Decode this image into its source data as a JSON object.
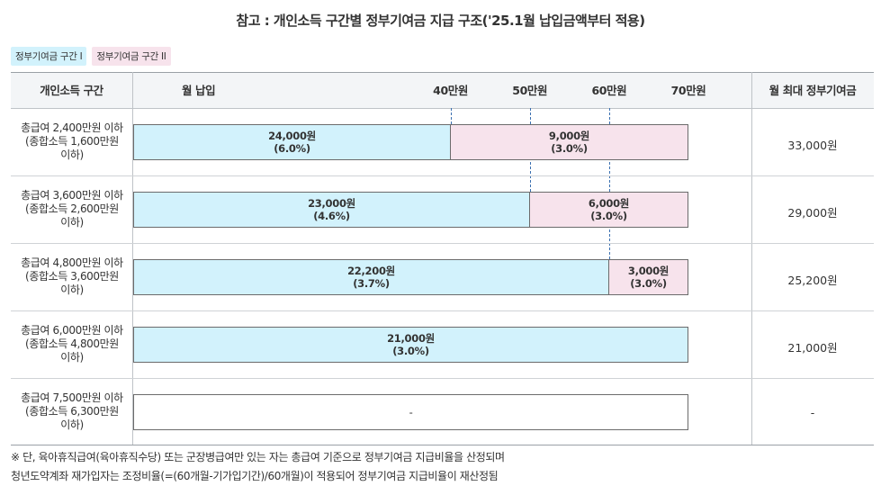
{
  "title": "참고 : 개인소득 구간별 정부기여금 지급 구조('25.1월 납입금액부터 적용)",
  "legend": {
    "tier1": "정부기여금 구간 I",
    "tier2": "정부기여금 구간 II"
  },
  "colors": {
    "tier1": "#d2f2fc",
    "tier2": "#f7e3ec",
    "dash": "#3a6fb0"
  },
  "header": {
    "income_col": "개인소득 구간",
    "axis_label": "월 납입",
    "max_col": "월 최대 정부기여금"
  },
  "chart_data": {
    "type": "bar",
    "orientation": "horizontal",
    "stacked": true,
    "x_axis_label": "월 납입",
    "x_unit": "만원",
    "xlim": [
      0,
      70
    ],
    "x_ticks": [
      40,
      50,
      60,
      70
    ],
    "x_tick_labels": [
      "40만원",
      "50만원",
      "60만원",
      "70만원"
    ],
    "rows": [
      {
        "label_lines": [
          "총급여 2,400만원 이하",
          "(종합소득 1,600만원",
          "이하)"
        ],
        "segments": [
          {
            "tier": "t1",
            "from": 0,
            "to": 40,
            "amount": "24,000원",
            "rate": "(6.0%)"
          },
          {
            "tier": "t2",
            "from": 40,
            "to": 70,
            "amount": "9,000원",
            "rate": "(3.0%)"
          }
        ],
        "max": "33,000원"
      },
      {
        "label_lines": [
          "총급여 3,600만원 이하",
          "(종합소득 2,600만원",
          "이하)"
        ],
        "segments": [
          {
            "tier": "t1",
            "from": 0,
            "to": 50,
            "amount": "23,000원",
            "rate": "(4.6%)"
          },
          {
            "tier": "t2",
            "from": 50,
            "to": 70,
            "amount": "6,000원",
            "rate": "(3.0%)"
          }
        ],
        "max": "29,000원"
      },
      {
        "label_lines": [
          "총급여 4,800만원 이하",
          "(종합소득 3,600만원",
          "이하)"
        ],
        "segments": [
          {
            "tier": "t1",
            "from": 0,
            "to": 60,
            "amount": "22,200원",
            "rate": "(3.7%)"
          },
          {
            "tier": "t2",
            "from": 60,
            "to": 70,
            "amount": "3,000원",
            "rate": "(3.0%)"
          }
        ],
        "max": "25,200원"
      },
      {
        "label_lines": [
          "총급여 6,000만원 이하",
          "(종합소득 4,800만원",
          "이하)"
        ],
        "segments": [
          {
            "tier": "t1",
            "from": 0,
            "to": 70,
            "amount": "21,000원",
            "rate": "(3.0%)"
          }
        ],
        "max": "21,000원"
      },
      {
        "label_lines": [
          "총급여 7,500만원 이하",
          "(종합소득 6,300만원",
          "이하)"
        ],
        "segments": [
          {
            "tier": "t0",
            "from": 0,
            "to": 70,
            "amount": "-",
            "rate": ""
          }
        ],
        "max": "-"
      }
    ]
  },
  "footnote": {
    "line1": "※ 단, 육아휴직급여(육아휴직수당) 또는 군장병급여만 있는 자는 총급여 기준으로 정부기여금 지급비율을 산정되며",
    "line2": "청년도약계좌 재가입자는 조정비율(=(60개월-기가입기간)/60개월)이 적용되어 정부기여금 지급비율이 재산정됨"
  }
}
